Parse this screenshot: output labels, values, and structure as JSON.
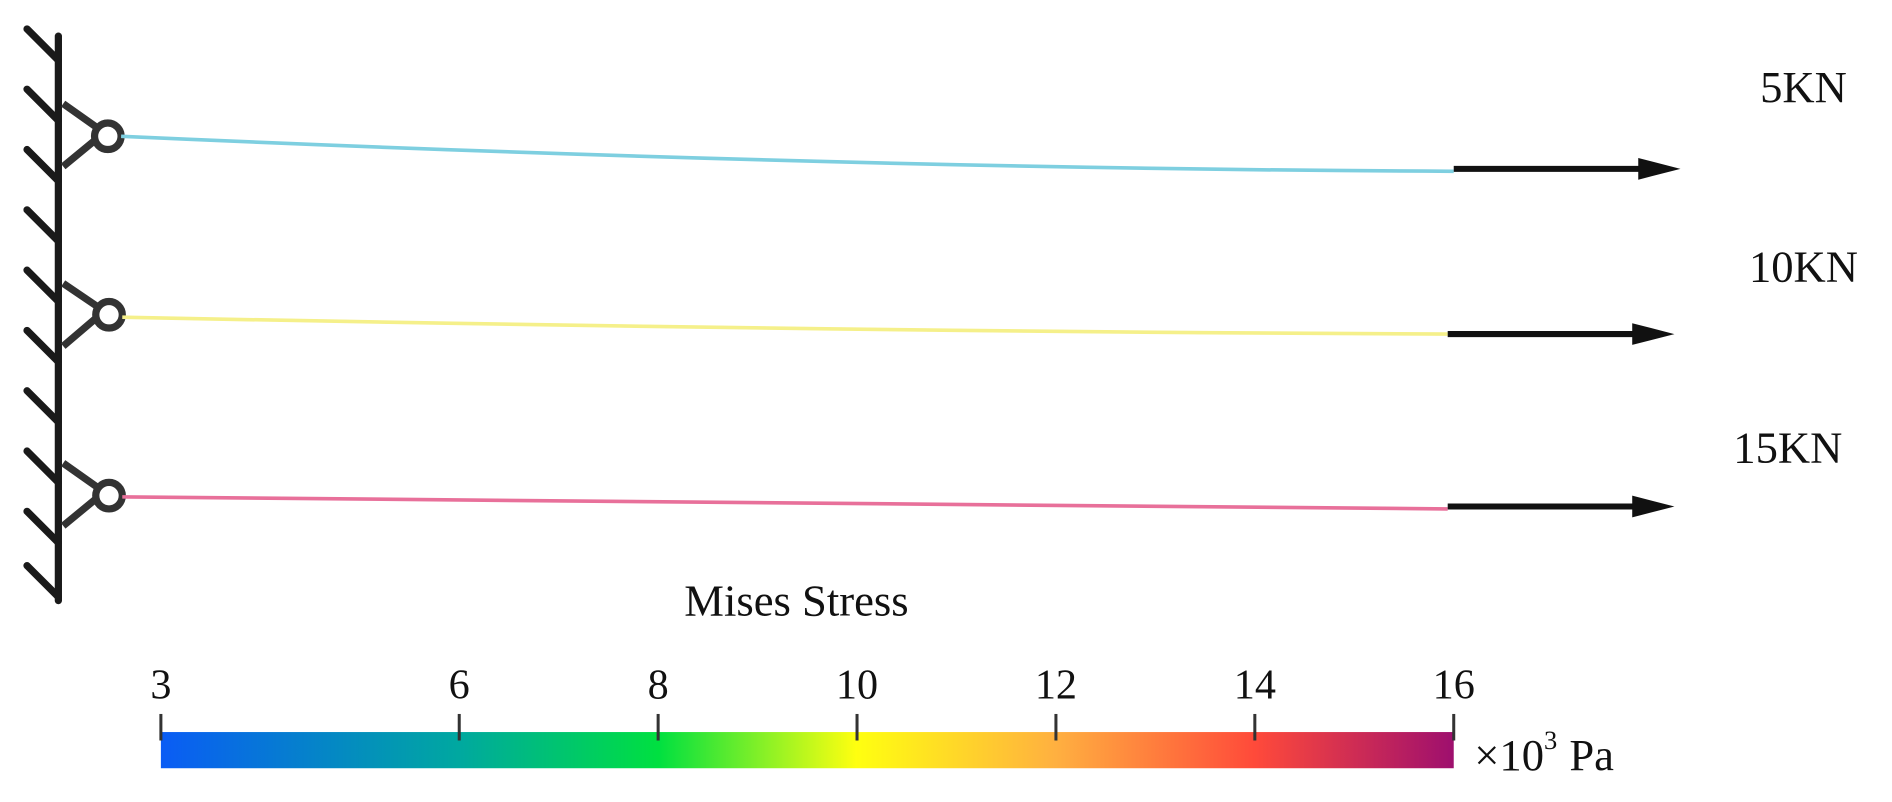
{
  "loads": [
    {
      "label": "5KN"
    },
    {
      "label": "10KN"
    },
    {
      "label": "15KN"
    }
  ],
  "colorbar": {
    "title": "Mises Stress",
    "lim": [
      3,
      16
    ],
    "ticks": [
      3,
      6,
      8,
      10,
      12,
      14,
      16
    ],
    "unit": {
      "base": "×10",
      "exponent": "3",
      "suffix": "Pa"
    }
  }
}
